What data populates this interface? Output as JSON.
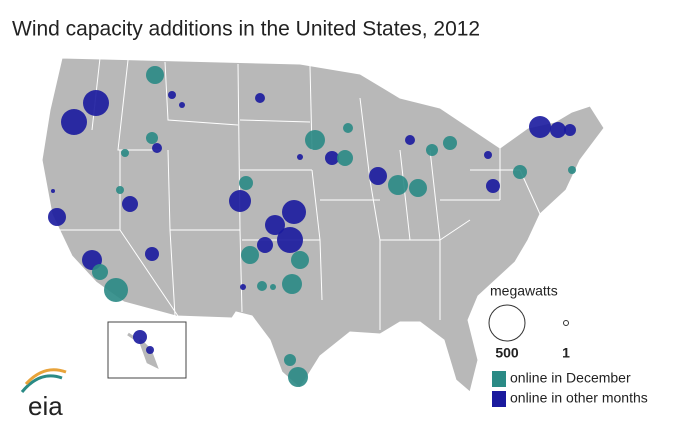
{
  "title": "Wind capacity additions in the United States, 2012",
  "legend": {
    "title": "megawatts",
    "sizes": [
      500,
      1
    ],
    "entries": [
      {
        "label": "online in December",
        "color": "#2a8a85"
      },
      {
        "label": "online in other months",
        "color": "#1a1a9e"
      }
    ]
  },
  "logo": "eia"
}
